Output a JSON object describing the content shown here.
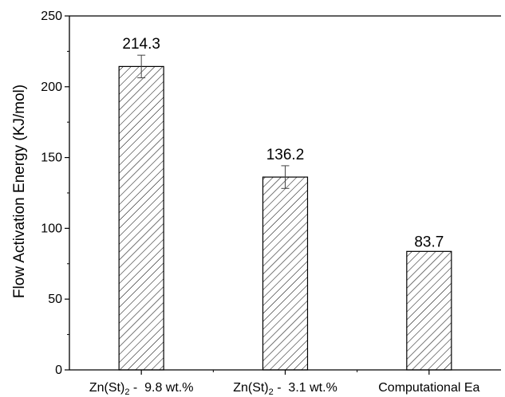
{
  "chart_data": {
    "type": "bar",
    "categories": [
      {
        "base": "Zn(St)",
        "sub": "2",
        "rest": " -  9.8 wt.%"
      },
      {
        "base": "Zn(St)",
        "sub": "2",
        "rest": " -  3.1 wt.%"
      },
      {
        "base": "Computational Ea",
        "sub": "",
        "rest": ""
      }
    ],
    "values": [
      214.3,
      136.2,
      83.7
    ],
    "value_labels": [
      "214.3",
      "136.2",
      "83.7"
    ],
    "error_bars": [
      8,
      8,
      0
    ],
    "ylabel": "Flow Activation Energy (KJ/mol)",
    "xlabel": "",
    "ylim": [
      0,
      250
    ],
    "yticks": [
      0,
      50,
      100,
      150,
      200,
      250
    ],
    "pattern": "diagonal-hatch",
    "bar_color": "#ffffff",
    "line_color": "#000000",
    "grid": false
  }
}
